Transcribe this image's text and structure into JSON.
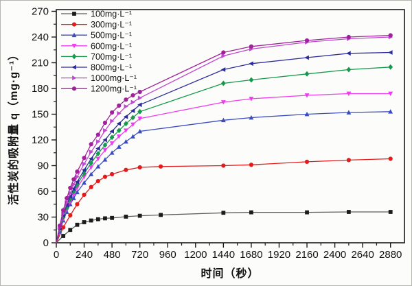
{
  "figure": {
    "background": "#fcfcfa",
    "frame_color": "#1a1a1a",
    "text_color": "#111111"
  },
  "chart_data": {
    "type": "line",
    "title": "",
    "xlabel": "时间（秒）",
    "ylabel": "活性炭的吸附量 q（mg·g⁻¹）",
    "xlim": [
      0,
      3000
    ],
    "ylim": [
      0,
      272
    ],
    "grid": false,
    "legend_position": "top-left",
    "x_major_ticks": [
      0,
      240,
      480,
      720,
      960,
      1200,
      1440,
      1680,
      1920,
      2160,
      2400,
      2640,
      2880
    ],
    "x_minor_step": 120,
    "y_major_ticks": [
      0,
      30,
      60,
      90,
      120,
      150,
      180,
      210,
      240,
      270
    ],
    "y_minor_step": 15,
    "series": [
      {
        "name": "100mg·L⁻¹",
        "color": "#1c1c1c",
        "line_color": "#5c5c5c",
        "marker": "square",
        "x": [
          0,
          60,
          120,
          180,
          240,
          300,
          360,
          420,
          480,
          600,
          720,
          900,
          1440,
          1680,
          2160,
          2520,
          2880
        ],
        "y": [
          0,
          8,
          15,
          21,
          24,
          26,
          27.5,
          28.5,
          29,
          30.5,
          31.5,
          32.5,
          35,
          35.5,
          35.5,
          36,
          36
        ]
      },
      {
        "name": "300mg·L⁻¹",
        "color": "#e31b1c",
        "line_color": "#e31b1c",
        "marker": "circle",
        "x": [
          0,
          60,
          120,
          180,
          240,
          300,
          360,
          420,
          480,
          600,
          720,
          900,
          1440,
          1680,
          2160,
          2520,
          2880
        ],
        "y": [
          0,
          18,
          32,
          45,
          56,
          65,
          72,
          77,
          80,
          85,
          88,
          89,
          90,
          91,
          94.5,
          96.5,
          98
        ]
      },
      {
        "name": "500mg·L⁻¹",
        "color": "#3a4cc0",
        "line_color": "#3a4cc0",
        "marker": "triangle-up",
        "x": [
          0,
          30,
          60,
          90,
          120,
          150,
          180,
          240,
          300,
          360,
          420,
          480,
          540,
          600,
          660,
          720,
          1440,
          1680,
          2160,
          2520,
          2880
        ],
        "y": [
          0,
          13,
          26,
          36,
          45,
          52,
          59,
          70,
          80,
          89,
          97,
          105,
          112,
          118,
          124,
          130,
          143,
          146,
          150,
          152,
          153
        ]
      },
      {
        "name": "600mg·L⁻¹",
        "color": "#ee3cee",
        "line_color": "#ee3cee",
        "marker": "triangle-down",
        "x": [
          0,
          30,
          60,
          90,
          120,
          150,
          180,
          240,
          300,
          360,
          420,
          480,
          540,
          600,
          660,
          720,
          1440,
          1680,
          2160,
          2520,
          2880
        ],
        "y": [
          0,
          15,
          28,
          39,
          48,
          56,
          64,
          77,
          88,
          98,
          108,
          116,
          124,
          131,
          138,
          145,
          164,
          168,
          172,
          174,
          174
        ]
      },
      {
        "name": "700mg·L⁻¹",
        "color": "#149a4a",
        "line_color": "#149a4a",
        "marker": "diamond",
        "x": [
          0,
          30,
          60,
          90,
          120,
          150,
          180,
          240,
          300,
          360,
          420,
          480,
          540,
          600,
          660,
          720,
          1440,
          1680,
          2160,
          2520,
          2880
        ],
        "y": [
          0,
          16,
          30,
          41,
          51,
          60,
          68,
          81,
          93,
          104,
          114,
          123,
          131,
          139,
          146,
          153,
          186,
          190,
          197,
          202,
          205
        ]
      },
      {
        "name": "800mg·L⁻¹",
        "color": "#2c2c9c",
        "line_color": "#2c2c9c",
        "marker": "triangle-left",
        "x": [
          0,
          30,
          60,
          90,
          120,
          150,
          180,
          240,
          300,
          360,
          420,
          480,
          540,
          600,
          660,
          720,
          1440,
          1680,
          2160,
          2520,
          2880
        ],
        "y": [
          0,
          17,
          32,
          44,
          54,
          63,
          71,
          85,
          98,
          110,
          120,
          130,
          139,
          147,
          154,
          161,
          202,
          209,
          216,
          221,
          222
        ]
      },
      {
        "name": "1000mg·L⁻¹",
        "color": "#bf49cf",
        "line_color": "#bf49cf",
        "marker": "triangle-right",
        "x": [
          0,
          30,
          60,
          90,
          120,
          150,
          180,
          240,
          300,
          360,
          420,
          480,
          540,
          600,
          660,
          720,
          1440,
          1680,
          2160,
          2520,
          2880
        ],
        "y": [
          0,
          18,
          34,
          47,
          58,
          68,
          77,
          92,
          106,
          118,
          131,
          142,
          151,
          159,
          164,
          169,
          218,
          226,
          234,
          238,
          240
        ]
      },
      {
        "name": "1200mg·L⁻¹",
        "color": "#a0219b",
        "line_color": "#a0219b",
        "marker": "circle",
        "x": [
          0,
          30,
          60,
          90,
          120,
          150,
          180,
          240,
          300,
          360,
          420,
          480,
          540,
          600,
          660,
          720,
          1440,
          1680,
          2160,
          2520,
          2880
        ],
        "y": [
          0,
          20,
          38,
          52,
          64,
          74,
          83,
          99,
          115,
          126,
          140,
          152,
          160,
          167,
          172,
          176,
          222,
          229,
          236,
          240,
          242
        ]
      }
    ]
  }
}
